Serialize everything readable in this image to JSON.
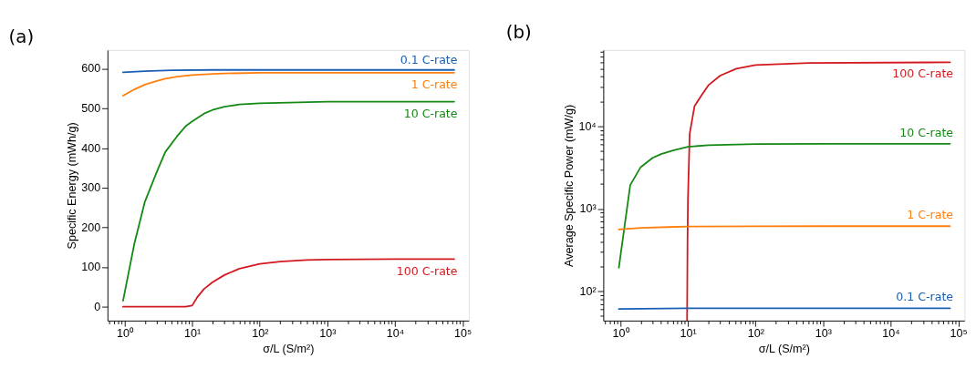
{
  "chart_data": [
    {
      "type": "line",
      "title": "(a)",
      "xlabel": "σ/L (S/m²)",
      "ylabel": "Specific Energy (mWh/g)",
      "log": "x",
      "xlim": [
        0.56,
        123000
      ],
      "ylim": [
        -35,
        647
      ],
      "xticks": [
        {
          "value": 0.6,
          "label": null
        },
        {
          "value": 0.7,
          "label": null
        },
        {
          "value": 0.8,
          "label": null
        },
        {
          "value": 0.9,
          "label": null
        },
        {
          "value": 1,
          "label": "10⁰"
        },
        {
          "value": 2,
          "label": null
        },
        {
          "value": 3,
          "label": null
        },
        {
          "value": 4,
          "label": null
        },
        {
          "value": 5,
          "label": null
        },
        {
          "value": 6,
          "label": null
        },
        {
          "value": 7,
          "label": null
        },
        {
          "value": 8,
          "label": null
        },
        {
          "value": 9,
          "label": null
        },
        {
          "value": 10,
          "label": "10¹"
        },
        {
          "value": 20,
          "label": null
        },
        {
          "value": 30,
          "label": null
        },
        {
          "value": 40,
          "label": null
        },
        {
          "value": 50,
          "label": null
        },
        {
          "value": 60,
          "label": null
        },
        {
          "value": 70,
          "label": null
        },
        {
          "value": 80,
          "label": null
        },
        {
          "value": 90,
          "label": null
        },
        {
          "value": 100,
          "label": "10²"
        },
        {
          "value": 200,
          "label": null
        },
        {
          "value": 300,
          "label": null
        },
        {
          "value": 400,
          "label": null
        },
        {
          "value": 500,
          "label": null
        },
        {
          "value": 600,
          "label": null
        },
        {
          "value": 700,
          "label": null
        },
        {
          "value": 800,
          "label": null
        },
        {
          "value": 900,
          "label": null
        },
        {
          "value": 1000,
          "label": "10³"
        },
        {
          "value": 2000,
          "label": null
        },
        {
          "value": 3000,
          "label": null
        },
        {
          "value": 4000,
          "label": null
        },
        {
          "value": 5000,
          "label": null
        },
        {
          "value": 6000,
          "label": null
        },
        {
          "value": 7000,
          "label": null
        },
        {
          "value": 8000,
          "label": null
        },
        {
          "value": 9000,
          "label": null
        },
        {
          "value": 10000,
          "label": "10⁴"
        },
        {
          "value": 20000,
          "label": null
        },
        {
          "value": 30000,
          "label": null
        },
        {
          "value": 40000,
          "label": null
        },
        {
          "value": 50000,
          "label": null
        },
        {
          "value": 60000,
          "label": null
        },
        {
          "value": 70000,
          "label": null
        },
        {
          "value": 80000,
          "label": null
        },
        {
          "value": 90000,
          "label": null
        },
        {
          "value": 100000,
          "label": "10⁵"
        }
      ],
      "yticks": [
        0,
        100,
        200,
        300,
        400,
        500,
        600
      ],
      "series": [
        {
          "name": "0.1 C-rate",
          "color": "#1a5fb4",
          "x": [
            0.95,
            2,
            5,
            20,
            100,
            1000,
            10000,
            75000
          ],
          "values": [
            591,
            594,
            596,
            597,
            597,
            597,
            597,
            597
          ]
        },
        {
          "name": "1 C-rate",
          "color": "#ff7f0e",
          "x": [
            0.95,
            1.4,
            2,
            3,
            4,
            6,
            10,
            20,
            30,
            100,
            1000,
            10000,
            75000
          ],
          "values": [
            532,
            548,
            560,
            569,
            575,
            580,
            584,
            587,
            588,
            590,
            590,
            590,
            590
          ]
        },
        {
          "name": "10 C-rate",
          "color": "#148a14",
          "x": [
            0.95,
            1.4,
            2,
            3,
            4,
            6,
            8,
            10,
            15,
            20,
            30,
            50,
            100,
            1000,
            10000,
            75000
          ],
          "values": [
            15,
            160,
            265,
            340,
            390,
            430,
            455,
            467,
            487,
            496,
            504,
            510,
            513,
            517,
            517,
            517
          ]
        },
        {
          "name": "100 C-rate",
          "color": "#d31920",
          "x": [
            0.95,
            2,
            5,
            8,
            10,
            12,
            15,
            20,
            30,
            50,
            100,
            200,
            500,
            1000,
            10000,
            75000
          ],
          "values": [
            0,
            0,
            0,
            0,
            3,
            25,
            45,
            62,
            80,
            96,
            108,
            114,
            118,
            119,
            120,
            120
          ]
        }
      ]
    },
    {
      "type": "line",
      "title": "(b)",
      "xlabel": "σ/L (S/m²)",
      "ylabel": "Average Specific Power (mW/g)",
      "log": "xy",
      "xlim": [
        0.56,
        123000
      ],
      "ylim": [
        44,
        84000
      ],
      "xticks": [
        {
          "value": 0.6,
          "label": null
        },
        {
          "value": 0.7,
          "label": null
        },
        {
          "value": 0.8,
          "label": null
        },
        {
          "value": 0.9,
          "label": null
        },
        {
          "value": 1,
          "label": "10⁰"
        },
        {
          "value": 2,
          "label": null
        },
        {
          "value": 3,
          "label": null
        },
        {
          "value": 4,
          "label": null
        },
        {
          "value": 5,
          "label": null
        },
        {
          "value": 6,
          "label": null
        },
        {
          "value": 7,
          "label": null
        },
        {
          "value": 8,
          "label": null
        },
        {
          "value": 9,
          "label": null
        },
        {
          "value": 10,
          "label": "10¹"
        },
        {
          "value": 20,
          "label": null
        },
        {
          "value": 30,
          "label": null
        },
        {
          "value": 40,
          "label": null
        },
        {
          "value": 50,
          "label": null
        },
        {
          "value": 60,
          "label": null
        },
        {
          "value": 70,
          "label": null
        },
        {
          "value": 80,
          "label": null
        },
        {
          "value": 90,
          "label": null
        },
        {
          "value": 100,
          "label": "10²"
        },
        {
          "value": 200,
          "label": null
        },
        {
          "value": 300,
          "label": null
        },
        {
          "value": 400,
          "label": null
        },
        {
          "value": 500,
          "label": null
        },
        {
          "value": 600,
          "label": null
        },
        {
          "value": 700,
          "label": null
        },
        {
          "value": 800,
          "label": null
        },
        {
          "value": 900,
          "label": null
        },
        {
          "value": 1000,
          "label": "10³"
        },
        {
          "value": 2000,
          "label": null
        },
        {
          "value": 3000,
          "label": null
        },
        {
          "value": 4000,
          "label": null
        },
        {
          "value": 5000,
          "label": null
        },
        {
          "value": 6000,
          "label": null
        },
        {
          "value": 7000,
          "label": null
        },
        {
          "value": 8000,
          "label": null
        },
        {
          "value": 9000,
          "label": null
        },
        {
          "value": 10000,
          "label": "10⁴"
        },
        {
          "value": 20000,
          "label": null
        },
        {
          "value": 30000,
          "label": null
        },
        {
          "value": 40000,
          "label": null
        },
        {
          "value": 50000,
          "label": null
        },
        {
          "value": 60000,
          "label": null
        },
        {
          "value": 70000,
          "label": null
        },
        {
          "value": 80000,
          "label": null
        },
        {
          "value": 90000,
          "label": null
        },
        {
          "value": 100000,
          "label": "10⁵"
        }
      ],
      "yticks": [
        {
          "value": 50,
          "label": null
        },
        {
          "value": 60,
          "label": null
        },
        {
          "value": 70,
          "label": null
        },
        {
          "value": 80,
          "label": null
        },
        {
          "value": 90,
          "label": null
        },
        {
          "value": 100,
          "label": "10²"
        },
        {
          "value": 200,
          "label": null
        },
        {
          "value": 300,
          "label": null
        },
        {
          "value": 400,
          "label": null
        },
        {
          "value": 500,
          "label": null
        },
        {
          "value": 600,
          "label": null
        },
        {
          "value": 700,
          "label": null
        },
        {
          "value": 800,
          "label": null
        },
        {
          "value": 900,
          "label": null
        },
        {
          "value": 1000,
          "label": "10³"
        },
        {
          "value": 2000,
          "label": null
        },
        {
          "value": 3000,
          "label": null
        },
        {
          "value": 4000,
          "label": null
        },
        {
          "value": 5000,
          "label": null
        },
        {
          "value": 6000,
          "label": null
        },
        {
          "value": 7000,
          "label": null
        },
        {
          "value": 8000,
          "label": null
        },
        {
          "value": 9000,
          "label": null
        },
        {
          "value": 10000,
          "label": "10⁴"
        },
        {
          "value": 20000,
          "label": null
        },
        {
          "value": 30000,
          "label": null
        },
        {
          "value": 40000,
          "label": null
        },
        {
          "value": 50000,
          "label": null
        },
        {
          "value": 60000,
          "label": null
        },
        {
          "value": 70000,
          "label": null
        },
        {
          "value": 80000,
          "label": null
        }
      ],
      "series": [
        {
          "name": "100 C-rate",
          "color": "#d31920",
          "x": [
            9.7,
            9.85,
            10,
            10.6,
            12.5,
            16,
            20,
            30,
            52,
            100,
            620,
            75000
          ],
          "values": [
            44,
            400,
            1320,
            8100,
            17600,
            24000,
            31400,
            41200,
            50000,
            55300,
            58500,
            59700
          ]
        },
        {
          "name": "10 C-rate",
          "color": "#148a14",
          "x": [
            0.95,
            1.4,
            2,
            3,
            4,
            6,
            10,
            20,
            100,
            1000,
            75000
          ],
          "values": [
            193,
            1940,
            3200,
            4140,
            4600,
            5100,
            5640,
            5900,
            6100,
            6130,
            6130
          ]
        },
        {
          "name": "1 C-rate",
          "color": "#ff7f0e",
          "x": [
            0.95,
            2,
            5,
            10,
            100,
            1000,
            75000
          ],
          "values": [
            560,
            585,
            600,
            610,
            613,
            615,
            615
          ]
        },
        {
          "name": "0.1 C-rate",
          "color": "#1a5fb4",
          "x": [
            0.95,
            10,
            100,
            75000
          ],
          "values": [
            61,
            62,
            62,
            62
          ]
        }
      ]
    }
  ]
}
